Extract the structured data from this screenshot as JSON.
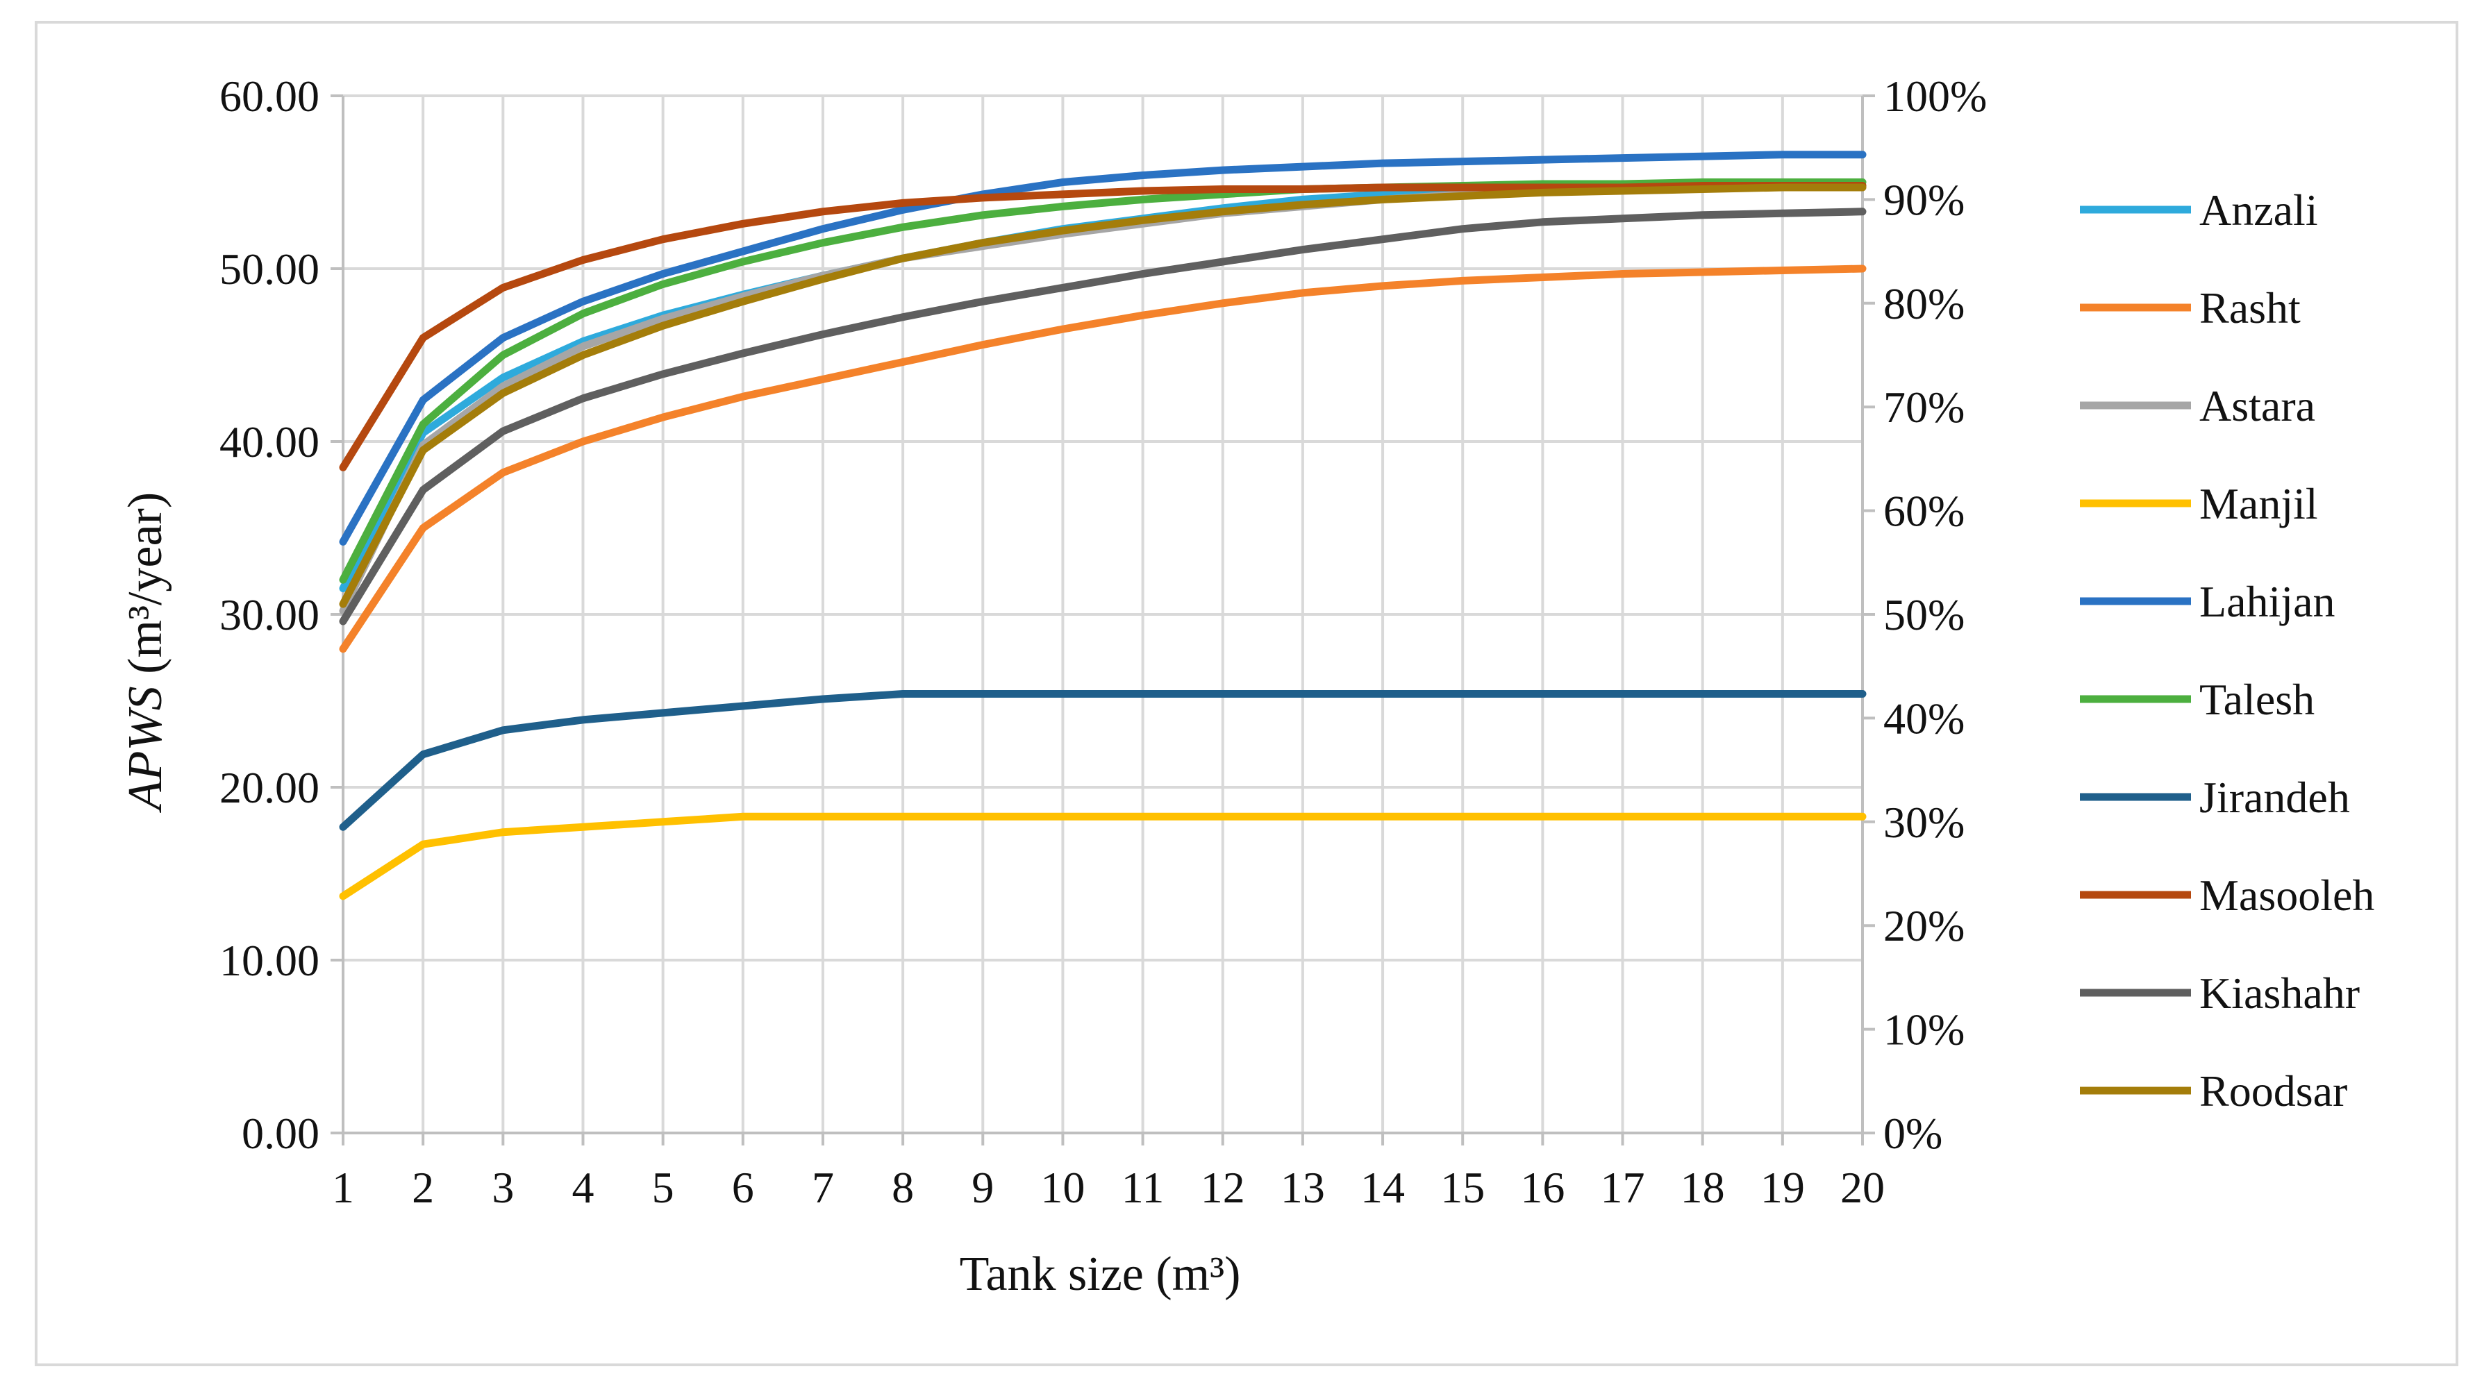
{
  "chart_data": {
    "type": "line",
    "title": "",
    "xlabel": "Tank size (m³)",
    "ylabel_italic": "APWS",
    "ylabel_unit": " (m³/year)",
    "y_right_label": "",
    "x": [
      1,
      2,
      3,
      4,
      5,
      6,
      7,
      8,
      9,
      10,
      11,
      12,
      13,
      14,
      15,
      16,
      17,
      18,
      19,
      20
    ],
    "x_tick_labels": [
      "1",
      "2",
      "3",
      "4",
      "5",
      "6",
      "7",
      "8",
      "9",
      "10",
      "11",
      "12",
      "13",
      "14",
      "15",
      "16",
      "17",
      "18",
      "19",
      "20"
    ],
    "xlim": [
      1,
      20
    ],
    "ylim": [
      0,
      60
    ],
    "y_ticks": [
      0,
      10,
      20,
      30,
      40,
      50,
      60
    ],
    "y_tick_labels": [
      "0.00",
      "10.00",
      "20.00",
      "30.00",
      "40.00",
      "50.00",
      "60.00"
    ],
    "y2lim": [
      0,
      100
    ],
    "y2_ticks": [
      0,
      10,
      20,
      30,
      40,
      50,
      60,
      70,
      80,
      90,
      100
    ],
    "y2_tick_labels": [
      "0%",
      "10%",
      "20%",
      "30%",
      "40%",
      "50%",
      "60%",
      "70%",
      "80%",
      "90%",
      "100%"
    ],
    "grid": true,
    "legend_position": "right",
    "series": [
      {
        "name": "Anzali",
        "color": "#2eaadc",
        "values": [
          31.5,
          40.5,
          43.7,
          45.8,
          47.3,
          48.5,
          49.6,
          50.6,
          51.5,
          52.3,
          52.9,
          53.5,
          54.0,
          54.3,
          54.5,
          54.6,
          54.7,
          54.7,
          54.8,
          54.8
        ]
      },
      {
        "name": "Rasht",
        "color": "#f4822a",
        "values": [
          28.0,
          35.0,
          38.2,
          40.0,
          41.4,
          42.6,
          43.6,
          44.6,
          45.6,
          46.5,
          47.3,
          48.0,
          48.6,
          49.0,
          49.3,
          49.5,
          49.7,
          49.8,
          49.9,
          50.0
        ]
      },
      {
        "name": "Astara",
        "color": "#a6a6a6",
        "values": [
          30.2,
          39.8,
          43.2,
          45.5,
          47.1,
          48.4,
          49.6,
          50.6,
          51.3,
          52.0,
          52.6,
          53.2,
          53.6,
          54.0,
          54.3,
          54.5,
          54.6,
          54.7,
          54.8,
          54.8
        ]
      },
      {
        "name": "Manjil",
        "color": "#ffc000",
        "values": [
          13.7,
          16.7,
          17.4,
          17.7,
          18.0,
          18.3,
          18.3,
          18.3,
          18.3,
          18.3,
          18.3,
          18.3,
          18.3,
          18.3,
          18.3,
          18.3,
          18.3,
          18.3,
          18.3,
          18.3
        ]
      },
      {
        "name": "Lahijan",
        "color": "#2a72c3",
        "values": [
          34.2,
          42.4,
          46.0,
          48.1,
          49.7,
          51.0,
          52.3,
          53.4,
          54.3,
          55.0,
          55.4,
          55.7,
          55.9,
          56.1,
          56.2,
          56.3,
          56.4,
          56.5,
          56.6,
          56.6
        ]
      },
      {
        "name": "Talesh",
        "color": "#4caf3f",
        "values": [
          32.0,
          41.0,
          45.0,
          47.4,
          49.1,
          50.4,
          51.5,
          52.4,
          53.1,
          53.6,
          54.0,
          54.3,
          54.6,
          54.7,
          54.8,
          54.9,
          54.9,
          55.0,
          55.0,
          55.0
        ]
      },
      {
        "name": "Jirandeh",
        "color": "#1f5f8b",
        "values": [
          17.7,
          21.9,
          23.3,
          23.9,
          24.3,
          24.7,
          25.1,
          25.4,
          25.4,
          25.4,
          25.4,
          25.4,
          25.4,
          25.4,
          25.4,
          25.4,
          25.4,
          25.4,
          25.4,
          25.4
        ]
      },
      {
        "name": "Masooleh",
        "color": "#b5480f",
        "values": [
          38.5,
          46.0,
          48.9,
          50.5,
          51.7,
          52.6,
          53.3,
          53.8,
          54.1,
          54.3,
          54.5,
          54.6,
          54.6,
          54.7,
          54.7,
          54.7,
          54.7,
          54.8,
          54.8,
          54.8
        ]
      },
      {
        "name": "Kiashahr",
        "color": "#5f5f5f",
        "values": [
          29.6,
          37.2,
          40.6,
          42.5,
          43.9,
          45.1,
          46.2,
          47.2,
          48.1,
          48.9,
          49.7,
          50.4,
          51.1,
          51.7,
          52.3,
          52.7,
          52.9,
          53.1,
          53.2,
          53.3
        ]
      },
      {
        "name": "Roodsar",
        "color": "#a47d0a",
        "values": [
          30.6,
          39.5,
          42.8,
          45.0,
          46.7,
          48.1,
          49.4,
          50.6,
          51.5,
          52.2,
          52.8,
          53.3,
          53.7,
          54.0,
          54.2,
          54.4,
          54.5,
          54.6,
          54.7,
          54.7
        ]
      }
    ]
  }
}
